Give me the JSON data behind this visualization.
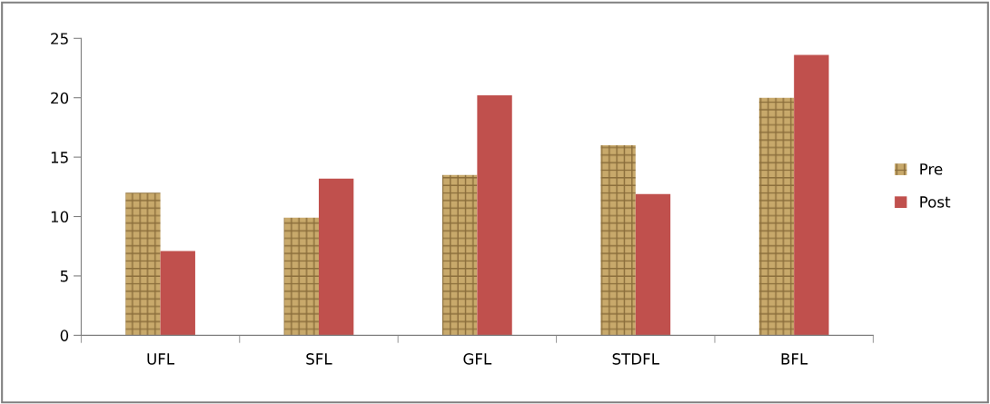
{
  "chart_data": {
    "type": "bar",
    "categories": [
      "UFL",
      "SFL",
      "GFL",
      "STDFL",
      "BFL"
    ],
    "series": [
      {
        "name": "Pre",
        "color": "#c8a96b",
        "values": [
          12.0,
          9.9,
          13.5,
          16.0,
          20.0
        ]
      },
      {
        "name": "Post",
        "color": "#c0504d",
        "values": [
          7.1,
          13.2,
          20.2,
          11.9,
          23.6
        ]
      }
    ],
    "ylim": [
      0,
      25
    ],
    "yticks": [
      0,
      5,
      10,
      15,
      20,
      25
    ],
    "grid": false,
    "legend": "right"
  }
}
